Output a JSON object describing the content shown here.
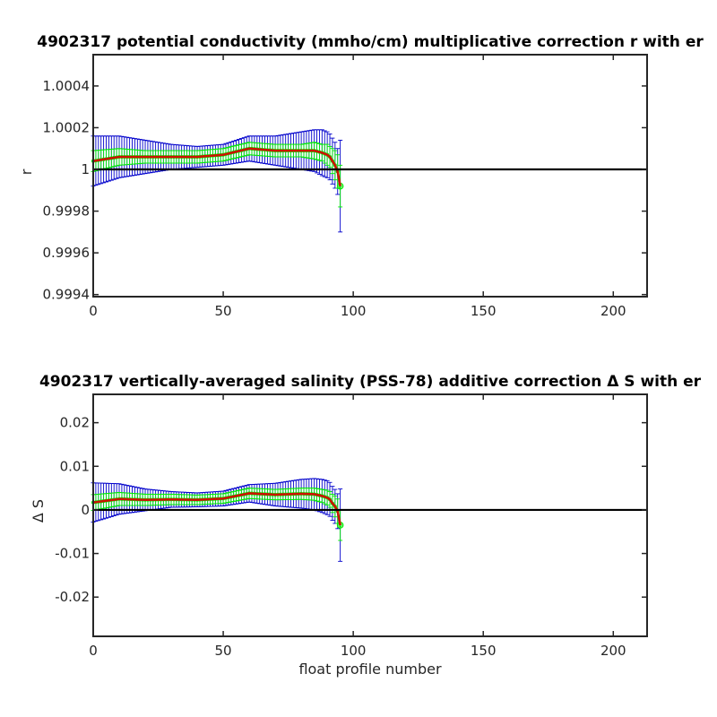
{
  "chart_data": [
    {
      "type": "line",
      "title": "4902317 potential conductivity (mmho/cm) multiplicative correction r with er",
      "xlabel": "",
      "ylabel": "r",
      "xlim": [
        0,
        213
      ],
      "ylim": [
        0.99939,
        1.00055
      ],
      "xticks": [
        0,
        50,
        100,
        150,
        200
      ],
      "xtick_labels": [
        "0",
        "50",
        "100",
        "150",
        "200"
      ],
      "yticks": [
        0.9994,
        0.9996,
        0.9998,
        1.0,
        1.0002,
        1.0004
      ],
      "ytick_labels": [
        "0.9994",
        "0.9996",
        "0.9998",
        "1",
        "1.0002",
        "1.0004"
      ],
      "reference_line": 1.0,
      "grid": false,
      "legend": "none",
      "colors": {
        "outer_error": "#0000cc",
        "inner_error": "#00ee00",
        "fit": "#cc1100",
        "reference": "#000000"
      },
      "series": [
        {
          "x": [
            0,
            10,
            20,
            30,
            40,
            50,
            60,
            70,
            80,
            85,
            88,
            90,
            91,
            92,
            93,
            94,
            95
          ],
          "values": [
            1.00004,
            1.00006,
            1.00006,
            1.00006,
            1.00006,
            1.00007,
            1.0001,
            1.00009,
            1.00009,
            1.00009,
            1.00008,
            1.00007,
            1.00006,
            1.00004,
            1.00002,
            0.99999,
            0.99992
          ],
          "outer_error": [
            0.00012,
            0.0001,
            8e-05,
            6e-05,
            5e-05,
            5e-05,
            6e-05,
            7e-05,
            9e-05,
            0.0001,
            0.00011,
            0.00011,
            0.00011,
            0.00011,
            0.00011,
            0.00011,
            0.00022
          ],
          "inner_error": [
            5e-05,
            4e-05,
            3e-05,
            3e-05,
            3e-05,
            3e-05,
            3e-05,
            3e-05,
            3e-05,
            4e-05,
            4e-05,
            5e-05,
            5e-05,
            6e-05,
            7e-05,
            8e-05,
            0.0001
          ]
        }
      ]
    },
    {
      "type": "line",
      "title": "4902317 vertically-averaged salinity (PSS-78) additive correction Δ S with er",
      "xlabel": "float profile number",
      "ylabel": "Δ S",
      "xlim": [
        0,
        213
      ],
      "ylim": [
        -0.029,
        0.0265
      ],
      "xticks": [
        0,
        50,
        100,
        150,
        200
      ],
      "xtick_labels": [
        "0",
        "50",
        "100",
        "150",
        "200"
      ],
      "yticks": [
        -0.02,
        -0.01,
        0,
        0.01,
        0.02
      ],
      "ytick_labels": [
        "-0.02",
        "-0.01",
        "0",
        "0.01",
        "0.02"
      ],
      "reference_line": 0,
      "grid": false,
      "legend": "none",
      "colors": {
        "outer_error": "#0000cc",
        "inner_error": "#00ee00",
        "fit": "#cc1100",
        "reference": "#000000"
      },
      "series": [
        {
          "x": [
            0,
            10,
            20,
            30,
            40,
            50,
            60,
            70,
            80,
            85,
            88,
            90,
            91,
            92,
            93,
            94,
            95
          ],
          "values": [
            0.0017,
            0.0025,
            0.0023,
            0.0024,
            0.0023,
            0.0026,
            0.0038,
            0.0035,
            0.0037,
            0.0036,
            0.0032,
            0.0028,
            0.0024,
            0.0015,
            0.0008,
            -0.0003,
            -0.0035
          ],
          "outer_error": [
            0.0045,
            0.0035,
            0.0025,
            0.0018,
            0.0016,
            0.0017,
            0.002,
            0.0026,
            0.0033,
            0.0036,
            0.0038,
            0.0039,
            0.0039,
            0.0039,
            0.0039,
            0.004,
            0.0083
          ],
          "inner_error": [
            0.0018,
            0.0015,
            0.0013,
            0.0012,
            0.0011,
            0.0011,
            0.0012,
            0.0012,
            0.0013,
            0.0014,
            0.0015,
            0.0017,
            0.0018,
            0.0021,
            0.0024,
            0.0028,
            0.0035
          ]
        }
      ]
    }
  ]
}
